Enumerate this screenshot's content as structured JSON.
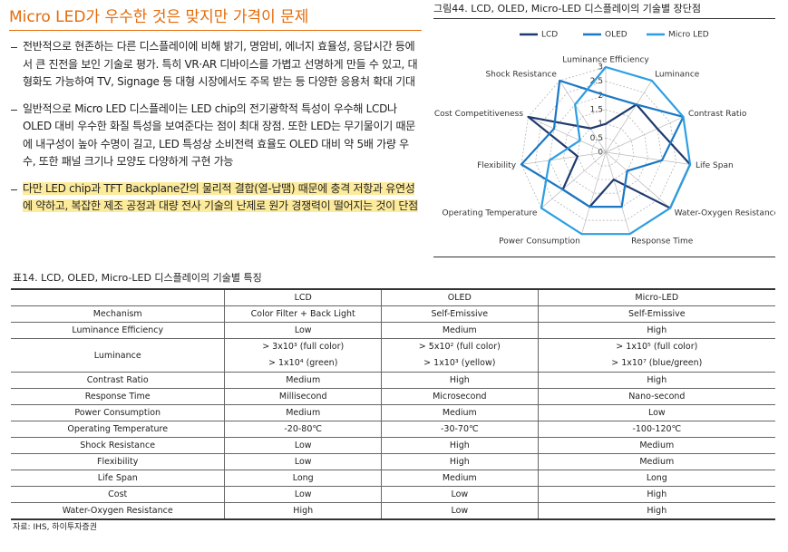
{
  "header": {
    "title": "Micro LED가 우수한 것은 맞지만 가격이 문제"
  },
  "bullets": [
    "전반적으로 현존하는 다른 디스플레이에 비해 밝기, 명암비, 에너지 효율성, 응답시간 등에서 큰 진전을 보인 기술로 평가. 특히 VR·AR 디바이스를 가볍고 선명하게 만들 수 있고, 대형화도 가능하여 TV, Signage 등 대형 시장에서도 주목 받는 등 다양한 응용처 확대 기대",
    "일반적으로 Micro LED 디스플레이는 LED chip의 전기광학적 특성이 우수해 LCD나 OLED 대비 우수한 화질 특성을 보여준다는 점이 최대 장점. 또한 LED는 무기물이기 때문에 내구성이 높아 수명이 길고, LED 특성상 소비전력 효율도 OLED 대비 약 5배 가량 우수, 또한 패널 크기나 모양도 다양하게 구현 가능",
    "다만 LED chip과 TFT Backplane간의 물리적 결합(열-납땜) 때문에 충격 저항과 유연성에 약하고, 복잡한 제조 공정과 대량 전사 기술의 난제로 원가 경쟁력이 떨어지는 것이 단점"
  ],
  "figure": {
    "caption": "그림44. LCD, OLED, Micro-LED 디스플레이의 기술별 장단점",
    "chart_data": {
      "type": "radar",
      "axes": [
        "Luminance Efficiency",
        "Luminance",
        "Contrast Ratio",
        "Life Span",
        "Water-Oxygen Resistance",
        "Response Time",
        "Power Consumption",
        "Operating Temperature",
        "Flexibility",
        "Cost Competitiveness",
        "Shock Resistance"
      ],
      "series": [
        {
          "name": "LCD",
          "color": "#1f3a6e",
          "values": [
            1,
            2,
            2,
            3,
            3,
            1,
            2,
            2,
            1,
            3,
            1
          ]
        },
        {
          "name": "OLED",
          "color": "#1b78c4",
          "values": [
            2,
            2,
            3,
            2,
            1,
            2,
            2,
            2,
            3,
            2,
            3
          ]
        },
        {
          "name": "Micro LED",
          "color": "#2d9ee3",
          "values": [
            3,
            3,
            3,
            3,
            3,
            3,
            3,
            3,
            2,
            1,
            2
          ]
        }
      ],
      "rlim": [
        0,
        3
      ],
      "rticks": [
        0,
        0.5,
        1,
        1.5,
        2,
        2.5,
        3
      ],
      "grid": true,
      "legend": "top"
    }
  },
  "table": {
    "caption": "표14. LCD, OLED, Micro-LED 디스플레이의 기술별 특징",
    "header": [
      "LCD",
      "OLED",
      "Micro-LED"
    ],
    "rows": [
      [
        "Mechanism",
        "Color Filter + Back Light",
        "Self-Emissive",
        "Self-Emissive"
      ],
      [
        "Luminance Efficiency",
        "Low",
        "Medium",
        "High"
      ],
      [
        "Luminance",
        [
          "> 3x10³ (full color)",
          "> 1x10⁴ (green)"
        ],
        [
          "> 5x10² (full color)",
          "> 1x10³ (yellow)"
        ],
        [
          "> 1x10⁵ (full color)",
          "> 1x10⁷ (blue/green)"
        ]
      ],
      [
        "Contrast Ratio",
        "Medium",
        "High",
        "High"
      ],
      [
        "Response Time",
        "Millisecond",
        "Microsecond",
        "Nano-second"
      ],
      [
        "Power Consumption",
        "Medium",
        "Medium",
        "Low"
      ],
      [
        "Operating Temperature",
        "-20-80℃",
        "-30-70℃",
        "-100-120℃"
      ],
      [
        "Shock Resistance",
        "Low",
        "High",
        "Medium"
      ],
      [
        "Flexibility",
        "Low",
        "High",
        "Medium"
      ],
      [
        "Life Span",
        "Long",
        "Medium",
        "Long"
      ],
      [
        "Cost",
        "Low",
        "Low",
        "High"
      ],
      [
        "Water-Oxygen Resistance",
        "High",
        "Low",
        "High"
      ]
    ]
  },
  "source": "자료: IHS, 하이투자증권"
}
